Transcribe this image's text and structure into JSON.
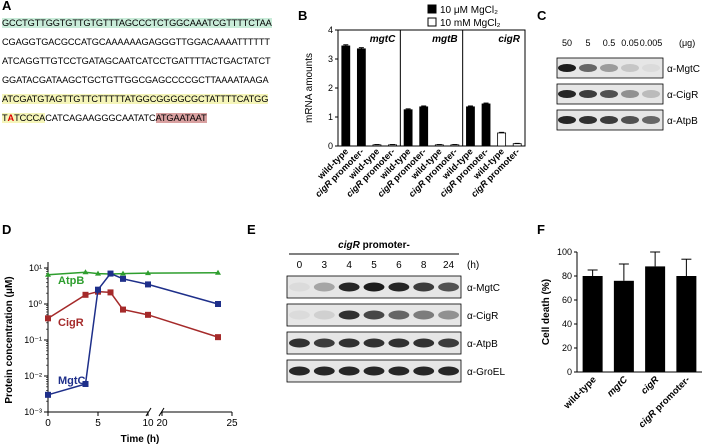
{
  "panels": {
    "a": "A",
    "b": "B",
    "c": "C",
    "d": "D",
    "e": "E",
    "f": "F"
  },
  "sequence": {
    "line1": "GCCTGTTGGTGTTGTGTTTAGCCCTCTGGCAAATCGTTTTCTAA",
    "line2": "CGAGGTGACGCCATGCAAAAAAGAGGGTTGGACAAAATTTTTT",
    "line3": "ATCAGGTTGTCCTGATAGCAATCATCCTGATTTTACTGACTATCT",
    "line4": "GGATACGATAAGCTGCTGTTGGCGAGCCCCGCTTAAAATAAGA",
    "line5": "ATCGATGTAGTTGTTCTTTTTATGGCGGGGCGCTATTTTCATGG",
    "line6a": "T",
    "line6b": "A",
    "line6c": "TCCCA",
    "line6d": "CATCAGAAGGGCAATATC",
    "line6e": "ATGAATAAT"
  },
  "chart_data": [
    {
      "type": "bar",
      "id": "B",
      "ylabel": "mRNA amounts",
      "legend": [
        "10 μM MgCl₂",
        "10 mM MgCl₂"
      ],
      "series_colors": [
        "#000000",
        "#ffffff"
      ],
      "ylim": [
        0,
        4
      ],
      "yticks": [
        0,
        1,
        2,
        3,
        4
      ],
      "groups": [
        {
          "name": "mgtC",
          "categories": [
            "wild-type",
            "cigR promoter-",
            "wild-type",
            "cigR promoter-"
          ],
          "values": [
            3.45,
            3.35,
            0.04,
            0.04
          ],
          "errors": [
            0.04,
            0.04,
            0.01,
            0.01
          ],
          "series": [
            0,
            0,
            1,
            1
          ]
        },
        {
          "name": "mgtB",
          "categories": [
            "wild-type",
            "cigR promoter-",
            "wild-type",
            "cigR promoter-"
          ],
          "values": [
            1.25,
            1.35,
            0.04,
            0.04
          ],
          "errors": [
            0.03,
            0.03,
            0.01,
            0.01
          ],
          "series": [
            0,
            0,
            1,
            1
          ]
        },
        {
          "name": "cigR",
          "categories": [
            "wild-type",
            "cigR promoter-",
            "wild-type",
            "cigR promoter-"
          ],
          "values": [
            1.35,
            1.45,
            0.45,
            0.08
          ],
          "errors": [
            0.03,
            0.03,
            0.02,
            0.01
          ],
          "series": [
            0,
            0,
            1,
            1
          ]
        }
      ]
    },
    {
      "type": "line",
      "id": "D",
      "xlabel": "Time (h)",
      "ylabel": "Protein concentration (μM)",
      "yscale": "log",
      "ylim": [
        0.001,
        10
      ],
      "ytick_labels": [
        "10⁻³",
        "10⁻²",
        "10⁻¹",
        "10⁰",
        "10¹"
      ],
      "xtick_labels": [
        "0",
        "5",
        "10",
        "20",
        "25"
      ],
      "series": [
        {
          "name": "AtpB",
          "color": "#2e9e2e",
          "x": [
            0,
            3,
            4,
            5,
            6,
            8,
            24
          ],
          "y": [
            6.5,
            7.6,
            7.0,
            6.8,
            7.0,
            7.2,
            7.4
          ]
        },
        {
          "name": "CigR",
          "color": "#a52a2a",
          "x": [
            0,
            3,
            4,
            5,
            6,
            8,
            24
          ],
          "y": [
            0.4,
            1.8,
            2.2,
            2.1,
            0.7,
            0.5,
            0.12
          ]
        },
        {
          "name": "MgtC",
          "color": "#1e2f8a",
          "x": [
            0,
            3,
            4,
            5,
            6,
            8,
            24
          ],
          "y": [
            0.003,
            0.006,
            2.5,
            7.0,
            5.0,
            3.5,
            1.0
          ]
        }
      ]
    },
    {
      "type": "bar",
      "id": "F",
      "ylabel": "Cell death (%)",
      "ylim": [
        0,
        100
      ],
      "yticks": [
        0,
        20,
        40,
        60,
        80,
        100
      ],
      "categories": [
        "wild-type",
        "mgtC",
        "cigR",
        "cigR promoter-"
      ],
      "values": [
        80,
        76,
        88,
        80
      ],
      "errors": [
        5,
        14,
        12,
        14
      ]
    }
  ],
  "blot_c": {
    "amounts": [
      "50",
      "5",
      "0.5",
      "0.05",
      "0.005"
    ],
    "unit": "(μg)",
    "rows": [
      "α-MgtC",
      "α-CigR",
      "α-AtpB"
    ]
  },
  "blot_e": {
    "title": "cigR promoter-",
    "times": [
      "0",
      "3",
      "4",
      "5",
      "6",
      "8",
      "24"
    ],
    "unit": "(h)",
    "rows": [
      "α-MgtC",
      "α-CigR",
      "α-AtpB",
      "α-GroEL"
    ]
  }
}
